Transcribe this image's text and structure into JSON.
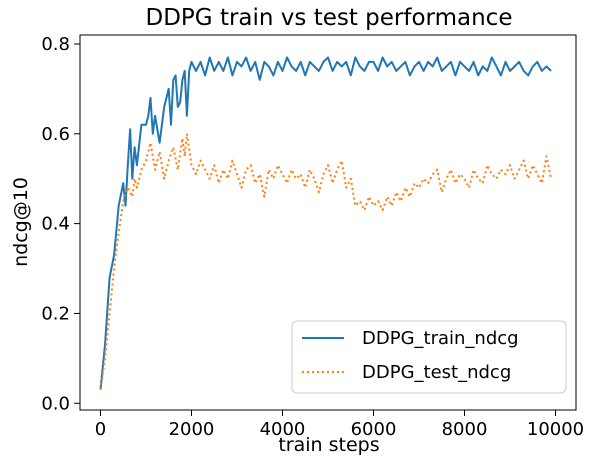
{
  "chart_data": {
    "type": "line",
    "title": "DDPG train vs test performance",
    "xlabel": "train steps",
    "ylabel": "ndcg@10",
    "xlim": [
      -450,
      10450
    ],
    "ylim": [
      -0.015,
      0.82
    ],
    "xticks": [
      0,
      2000,
      4000,
      6000,
      8000,
      10000
    ],
    "yticks": [
      0.0,
      0.2,
      0.4,
      0.6,
      0.8
    ],
    "grid": false,
    "legend_position": "lower-right",
    "series": [
      {
        "name": "DDPG_train_ndcg",
        "color": "#1f77b4",
        "style": "solid",
        "x": [
          0,
          100,
          200,
          300,
          400,
          500,
          550,
          600,
          650,
          700,
          750,
          800,
          900,
          1000,
          1050,
          1100,
          1150,
          1200,
          1300,
          1400,
          1500,
          1550,
          1600,
          1650,
          1700,
          1750,
          1800,
          1850,
          1900,
          1950,
          2000,
          2100,
          2200,
          2300,
          2400,
          2500,
          2600,
          2700,
          2800,
          2900,
          3000,
          3100,
          3200,
          3300,
          3400,
          3500,
          3600,
          3700,
          3800,
          3900,
          4000,
          4100,
          4200,
          4300,
          4400,
          4500,
          4600,
          4700,
          4800,
          4900,
          5000,
          5100,
          5200,
          5300,
          5400,
          5500,
          5600,
          5700,
          5800,
          5900,
          6000,
          6100,
          6200,
          6300,
          6400,
          6500,
          6600,
          6700,
          6800,
          6900,
          7000,
          7100,
          7200,
          7300,
          7400,
          7500,
          7600,
          7700,
          7800,
          7900,
          8000,
          8100,
          8200,
          8300,
          8400,
          8500,
          8600,
          8700,
          8800,
          8900,
          9000,
          9100,
          9200,
          9300,
          9400,
          9500,
          9600,
          9700,
          9800,
          9900
        ],
        "values": [
          0.03,
          0.13,
          0.28,
          0.33,
          0.44,
          0.49,
          0.44,
          0.53,
          0.61,
          0.5,
          0.57,
          0.53,
          0.62,
          0.62,
          0.64,
          0.68,
          0.6,
          0.64,
          0.58,
          0.66,
          0.7,
          0.62,
          0.72,
          0.73,
          0.66,
          0.67,
          0.72,
          0.74,
          0.64,
          0.74,
          0.76,
          0.74,
          0.76,
          0.73,
          0.77,
          0.74,
          0.76,
          0.74,
          0.77,
          0.73,
          0.76,
          0.75,
          0.77,
          0.74,
          0.76,
          0.72,
          0.76,
          0.75,
          0.73,
          0.76,
          0.74,
          0.77,
          0.75,
          0.74,
          0.76,
          0.73,
          0.76,
          0.75,
          0.74,
          0.76,
          0.77,
          0.74,
          0.76,
          0.75,
          0.76,
          0.73,
          0.77,
          0.75,
          0.74,
          0.76,
          0.76,
          0.74,
          0.77,
          0.75,
          0.76,
          0.74,
          0.75,
          0.76,
          0.73,
          0.75,
          0.76,
          0.74,
          0.76,
          0.75,
          0.77,
          0.74,
          0.75,
          0.76,
          0.73,
          0.76,
          0.75,
          0.74,
          0.76,
          0.73,
          0.75,
          0.74,
          0.77,
          0.75,
          0.73,
          0.76,
          0.74,
          0.75,
          0.76,
          0.74,
          0.73,
          0.75,
          0.76,
          0.74,
          0.75,
          0.74
        ]
      },
      {
        "name": "DDPG_test_ndcg",
        "color": "#ff7f0e",
        "style": "dotted",
        "x": [
          0,
          100,
          200,
          300,
          400,
          500,
          600,
          650,
          700,
          750,
          800,
          900,
          1000,
          1100,
          1150,
          1200,
          1300,
          1400,
          1500,
          1600,
          1700,
          1800,
          1850,
          1900,
          2000,
          2100,
          2200,
          2300,
          2400,
          2500,
          2600,
          2700,
          2800,
          2900,
          3000,
          3100,
          3200,
          3300,
          3400,
          3500,
          3600,
          3700,
          3800,
          3900,
          4000,
          4100,
          4200,
          4300,
          4400,
          4500,
          4600,
          4700,
          4800,
          4900,
          5000,
          5100,
          5200,
          5300,
          5400,
          5500,
          5600,
          5700,
          5800,
          5900,
          6000,
          6100,
          6200,
          6300,
          6400,
          6500,
          6600,
          6700,
          6800,
          6900,
          7000,
          7100,
          7200,
          7300,
          7400,
          7500,
          7600,
          7700,
          7800,
          7900,
          8000,
          8100,
          8200,
          8300,
          8400,
          8500,
          8600,
          8700,
          8800,
          8900,
          9000,
          9100,
          9200,
          9300,
          9400,
          9500,
          9600,
          9700,
          9800,
          9900
        ],
        "values": [
          0.03,
          0.1,
          0.2,
          0.3,
          0.38,
          0.45,
          0.48,
          0.47,
          0.46,
          0.5,
          0.48,
          0.52,
          0.54,
          0.58,
          0.55,
          0.52,
          0.56,
          0.5,
          0.54,
          0.57,
          0.52,
          0.59,
          0.55,
          0.6,
          0.53,
          0.51,
          0.54,
          0.52,
          0.5,
          0.53,
          0.49,
          0.52,
          0.5,
          0.54,
          0.51,
          0.48,
          0.52,
          0.53,
          0.49,
          0.51,
          0.46,
          0.52,
          0.5,
          0.53,
          0.51,
          0.49,
          0.52,
          0.5,
          0.51,
          0.48,
          0.52,
          0.5,
          0.47,
          0.51,
          0.53,
          0.49,
          0.52,
          0.54,
          0.48,
          0.5,
          0.44,
          0.45,
          0.43,
          0.46,
          0.44,
          0.45,
          0.43,
          0.46,
          0.44,
          0.47,
          0.45,
          0.48,
          0.46,
          0.49,
          0.48,
          0.5,
          0.49,
          0.51,
          0.52,
          0.47,
          0.5,
          0.52,
          0.49,
          0.51,
          0.5,
          0.48,
          0.52,
          0.5,
          0.49,
          0.53,
          0.51,
          0.5,
          0.52,
          0.51,
          0.53,
          0.5,
          0.52,
          0.54,
          0.5,
          0.53,
          0.51,
          0.49,
          0.55,
          0.5
        ]
      }
    ]
  }
}
